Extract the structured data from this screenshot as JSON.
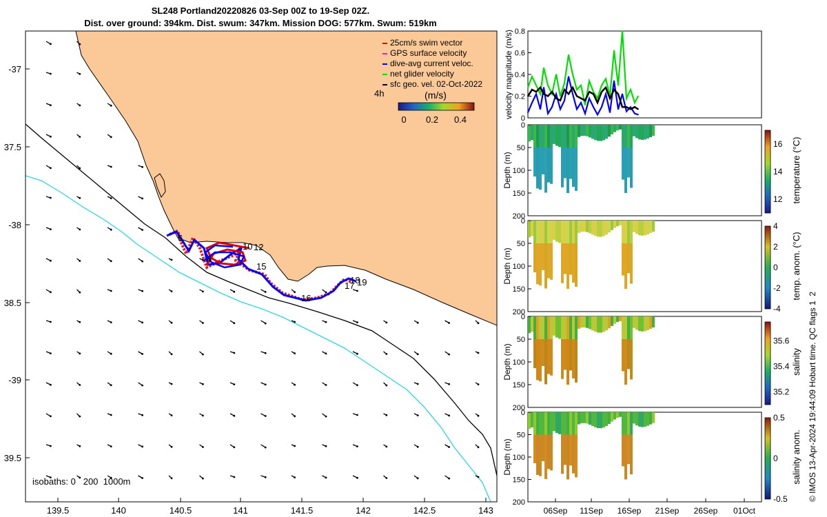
{
  "title": {
    "line1": "SL248 Portland20220826 03-Sep 00Z to 19-Sep 02Z.",
    "line2": "Dist. over ground: 394km. Dist. swum: 347km. Mission DOG: 577km. Swum: 519km"
  },
  "map": {
    "lon_ticks": [
      "139.5",
      "140",
      "140.5",
      "141",
      "141.5",
      "142",
      "142.5",
      "143"
    ],
    "lat_ticks": [
      "-37",
      "37.5",
      "-38",
      "38.5",
      "-39",
      "39.5"
    ],
    "isobaths_label": "isobaths: 0   200  1000m",
    "time_label": "4h",
    "legend": [
      {
        "label": "25cm/s swim vector",
        "color": "#e00000"
      },
      {
        "label": "GPS surface velocity",
        "color": "#ff00ff"
      },
      {
        "label": "dive-avg current veloc.",
        "color": "#0000ff"
      },
      {
        "label": "net glider velocity",
        "color": "#00e000"
      },
      {
        "label": "sfc geo. vel. 02-Oct-2022",
        "color": "#000000"
      }
    ],
    "colorbar": {
      "title": "(m/s)",
      "ticks": [
        "0",
        "0.2",
        "0.4"
      ]
    },
    "day_labels": [
      "6",
      "4",
      "10",
      "12",
      "15",
      "16",
      "17",
      "18",
      "19"
    ]
  },
  "velocity_panel": {
    "ylabel": "velocity magnitude (m/s)",
    "yticks": [
      "0",
      "0.2",
      "0.4",
      "0.6",
      "0.8"
    ]
  },
  "chart_data": [
    {
      "type": "line",
      "title": "velocity magnitude",
      "ylabel": "velocity magnitude (m/s)",
      "ylim": [
        0,
        0.8
      ],
      "x_unit": "day of Sep 2022",
      "series": [
        {
          "name": "net glider velocity",
          "color": "#00e000",
          "x": [
            3,
            3.6,
            4.2,
            4.8,
            5.3,
            5.9,
            6.5,
            7.1,
            7.7,
            8.3,
            8.9,
            9.5,
            10.1,
            10.7,
            11.3,
            11.9,
            12.5,
            13.1,
            13.7,
            14.3,
            14.9,
            15.5,
            16.1,
            16.7,
            17.3,
            17.9,
            18.5,
            19.0
          ],
          "y": [
            0.28,
            0.38,
            0.3,
            0.22,
            0.46,
            0.3,
            0.22,
            0.4,
            0.2,
            0.32,
            0.58,
            0.4,
            0.26,
            0.3,
            0.12,
            0.34,
            0.24,
            0.18,
            0.3,
            0.36,
            0.2,
            0.62,
            0.3,
            0.82,
            0.18,
            0.26,
            0.14,
            0.2
          ]
        },
        {
          "name": "dive-avg current veloc.",
          "color": "#0000ff",
          "x": [
            3,
            3.6,
            4.2,
            4.8,
            5.3,
            5.9,
            6.5,
            7.1,
            7.7,
            8.3,
            8.9,
            9.5,
            10.1,
            10.7,
            11.3,
            11.9,
            12.5,
            13.1,
            13.7,
            14.3,
            14.9,
            15.5,
            16.1,
            16.7,
            17.3,
            17.9,
            18.5,
            19.0
          ],
          "y": [
            0.05,
            0.14,
            0.22,
            0.08,
            0.28,
            0.04,
            0.1,
            0.22,
            0.08,
            0.16,
            0.38,
            0.22,
            0.08,
            0.14,
            0.04,
            0.18,
            0.1,
            0.03,
            0.1,
            0.22,
            0.05,
            0.34,
            0.08,
            0.22,
            0.06,
            0.1,
            0.04,
            0.03
          ]
        },
        {
          "name": "sfc geo. vel. 02-Oct-2022",
          "color": "#000000",
          "x": [
            3,
            3.6,
            4.2,
            4.8,
            5.3,
            5.9,
            6.5,
            7.1,
            7.7,
            8.3,
            8.9,
            9.5,
            10.1,
            10.7,
            11.3,
            11.9,
            12.5,
            13.1,
            13.7,
            14.3,
            14.9,
            15.5,
            16.1,
            16.7,
            17.3,
            17.9,
            18.5,
            19.0
          ],
          "y": [
            0.2,
            0.26,
            0.24,
            0.28,
            0.22,
            0.2,
            0.24,
            0.18,
            0.16,
            0.26,
            0.22,
            0.28,
            0.2,
            0.18,
            0.16,
            0.24,
            0.22,
            0.14,
            0.24,
            0.28,
            0.18,
            0.26,
            0.22,
            0.1,
            0.1,
            0.08,
            0.1,
            0.08
          ]
        }
      ]
    },
    {
      "type": "heatmap",
      "title": "temperature",
      "ylabel": "Depth (m)",
      "yticks": [
        "0",
        "50",
        "100",
        "150",
        "200"
      ],
      "ylim": [
        200,
        0
      ],
      "colorbar_label": "temperature (°C)",
      "colorbar_ticks": [
        "12",
        "14",
        "16"
      ],
      "clim": [
        11,
        17
      ]
    },
    {
      "type": "heatmap",
      "title": "temp. anom.",
      "ylabel": "Depth (m)",
      "yticks": [
        "0",
        "50",
        "100",
        "150",
        "200"
      ],
      "ylim": [
        200,
        0
      ],
      "colorbar_label": "temp. anom. (°C)",
      "colorbar_ticks": [
        "-4",
        "-2",
        "0",
        "2",
        "4"
      ],
      "clim": [
        -4,
        4
      ]
    },
    {
      "type": "heatmap",
      "title": "salinity",
      "ylabel": "Depth (m)",
      "yticks": [
        "0",
        "50",
        "100",
        "150",
        "200"
      ],
      "ylim": [
        200,
        0
      ],
      "colorbar_label": "salinity",
      "colorbar_ticks": [
        "35.2",
        "35.4",
        "35.6"
      ],
      "clim": [
        35.1,
        35.75
      ]
    },
    {
      "type": "heatmap",
      "title": "salinity anom.",
      "ylabel": "Depth (m)",
      "yticks": [
        "0",
        "50",
        "100",
        "150",
        "200"
      ],
      "ylim": [
        200,
        0
      ],
      "colorbar_label": "salinity anom.",
      "colorbar_ticks": [
        "-0.5",
        "0",
        "0.5"
      ],
      "clim": [
        -0.5,
        0.5
      ],
      "xticks": [
        "06Sep",
        "11Sep",
        "16Sep",
        "21Sep",
        "26Sep",
        "01Oct"
      ]
    }
  ],
  "footer": "© IMOS 13-Apr-2024 19:44:09 Hobart time. QC flags 1  2"
}
